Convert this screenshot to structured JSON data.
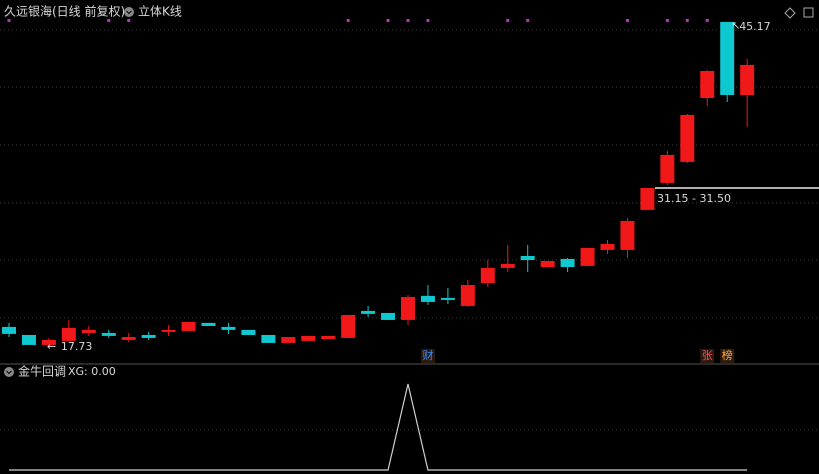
{
  "header": {
    "title": "久远银海(日线 前复权)",
    "indicator": "立体K线"
  },
  "chart_data": [
    {
      "type": "candlestick",
      "open": [
        19.42,
        18.74,
        17.9,
        18.24,
        18.91,
        18.91,
        18.32,
        18.74,
        19.0,
        19.08,
        19.76,
        19.42,
        19.17,
        18.74,
        18.07,
        18.24,
        18.4,
        18.49,
        20.77,
        20.6,
        20.01,
        22.04,
        21.87,
        21.19,
        23.13,
        24.4,
        25.41,
        24.48,
        25.16,
        24.57,
        25.92,
        25.92,
        29.3,
        31.58,
        33.35,
        38.75,
        45.17,
        39.0
      ],
      "high": [
        19.76,
        18.74,
        18.49,
        20.01,
        19.5,
        19.17,
        18.91,
        19.0,
        19.59,
        19.84,
        19.76,
        19.76,
        19.17,
        18.74,
        18.57,
        18.66,
        18.66,
        20.43,
        21.19,
        20.6,
        22.12,
        22.96,
        22.71,
        23.39,
        25.07,
        26.34,
        26.34,
        24.99,
        25.24,
        26.09,
        26.76,
        28.62,
        31.15,
        34.28,
        37.4,
        41.12,
        45.17,
        42.05
      ],
      "low": [
        18.57,
        17.9,
        17.73,
        18.15,
        18.66,
        18.49,
        18.15,
        18.32,
        18.66,
        19.08,
        19.5,
        18.83,
        18.74,
        18.07,
        18.07,
        18.24,
        18.4,
        18.49,
        20.26,
        20.01,
        19.59,
        21.28,
        21.36,
        21.11,
        22.79,
        24.06,
        24.06,
        24.48,
        24.06,
        24.57,
        25.58,
        25.24,
        29.3,
        31.41,
        33.27,
        38.08,
        38.41,
        36.3
      ],
      "close": [
        18.83,
        17.9,
        18.32,
        19.34,
        19.17,
        18.66,
        18.57,
        18.49,
        19.17,
        19.84,
        19.5,
        19.17,
        18.74,
        18.07,
        18.57,
        18.66,
        18.66,
        20.43,
        20.52,
        20.01,
        21.95,
        21.53,
        21.7,
        22.96,
        24.4,
        24.74,
        25.07,
        24.99,
        24.48,
        26.09,
        26.43,
        28.37,
        31.15,
        33.94,
        37.32,
        41.03,
        39.0,
        41.54
      ],
      "ylim": [
        17.05,
        46.01
      ],
      "up_color": "#f01818",
      "down_color": "#10c8d0",
      "max_label": 45.17,
      "min_label": 17.73,
      "gap": {
        "label": "31.15 - 31.50",
        "low": 31.15,
        "high": 31.5
      },
      "signal_markers": [
        0,
        5,
        6,
        17,
        19,
        20,
        21,
        25,
        26,
        31,
        33,
        34,
        35
      ],
      "signal_color": "#c030c0",
      "events": [
        {
          "index": 21,
          "label": "财",
          "color": "#3a8cff"
        },
        {
          "index": 35,
          "label": "张",
          "color": "#ff5050"
        },
        {
          "index": 36,
          "label": "榜",
          "color": "#ffb040"
        }
      ]
    },
    {
      "type": "line",
      "title": "金牛回调",
      "legend": "XG: 0.00",
      "color": "#d0d0d0",
      "values": [
        0,
        0,
        0,
        0,
        0,
        0,
        0,
        0,
        0,
        0,
        0,
        0,
        0,
        0,
        0,
        0,
        0,
        0,
        0,
        0,
        1,
        0,
        0,
        0,
        0,
        0,
        0,
        0,
        0,
        0,
        0,
        0,
        0,
        0,
        0,
        0,
        0,
        0
      ],
      "ylim": [
        0,
        1
      ]
    }
  ]
}
